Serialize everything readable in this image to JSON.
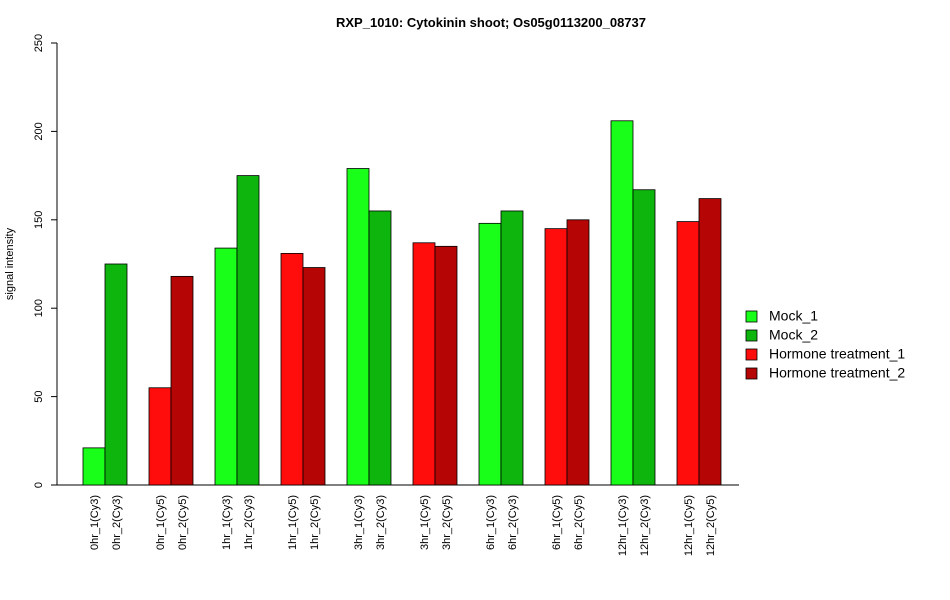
{
  "chart_data": {
    "type": "bar",
    "title": "RXP_1010: Cytokinin shoot; Os05g0113200_08737",
    "ylabel": "signal intensity",
    "xlabel": "",
    "ylim": [
      0,
      250
    ],
    "yticks": [
      "0",
      "50",
      "100",
      "150",
      "200",
      "250"
    ],
    "grid": false,
    "legend_position": "right",
    "series": [
      {
        "name": "Mock_1",
        "color": "#19FF19"
      },
      {
        "name": "Mock_2",
        "color": "#0DB50D"
      },
      {
        "name": "Hormone treatment_1",
        "color": "#FF0D0D"
      },
      {
        "name": "Hormone treatment_2",
        "color": "#B50505"
      }
    ],
    "bars": [
      {
        "label": "0hr_1(Cy3)",
        "value": 21,
        "series": 0
      },
      {
        "label": "0hr_2(Cy3)",
        "value": 125,
        "series": 1
      },
      {
        "label": "0hr_1(Cy5)",
        "value": 55,
        "series": 2
      },
      {
        "label": "0hr_2(Cy5)",
        "value": 118,
        "series": 3
      },
      {
        "label": "1hr_1(Cy3)",
        "value": 134,
        "series": 0
      },
      {
        "label": "1hr_2(Cy3)",
        "value": 175,
        "series": 1
      },
      {
        "label": "1hr_1(Cy5)",
        "value": 131,
        "series": 2
      },
      {
        "label": "1hr_2(Cy5)",
        "value": 123,
        "series": 3
      },
      {
        "label": "3hr_1(Cy3)",
        "value": 179,
        "series": 0
      },
      {
        "label": "3hr_2(Cy3)",
        "value": 155,
        "series": 1
      },
      {
        "label": "3hr_1(Cy5)",
        "value": 137,
        "series": 2
      },
      {
        "label": "3hr_2(Cy5)",
        "value": 135,
        "series": 3
      },
      {
        "label": "6hr_1(Cy3)",
        "value": 148,
        "series": 0
      },
      {
        "label": "6hr_2(Cy3)",
        "value": 155,
        "series": 1
      },
      {
        "label": "6hr_1(Cy5)",
        "value": 145,
        "series": 2
      },
      {
        "label": "6hr_2(Cy5)",
        "value": 150,
        "series": 3
      },
      {
        "label": "12hr_1(Cy3)",
        "value": 206,
        "series": 0
      },
      {
        "label": "12hr_2(Cy3)",
        "value": 167,
        "series": 1
      },
      {
        "label": "12hr_1(Cy5)",
        "value": 149,
        "series": 2
      },
      {
        "label": "12hr_2(Cy5)",
        "value": 162,
        "series": 3
      }
    ]
  }
}
